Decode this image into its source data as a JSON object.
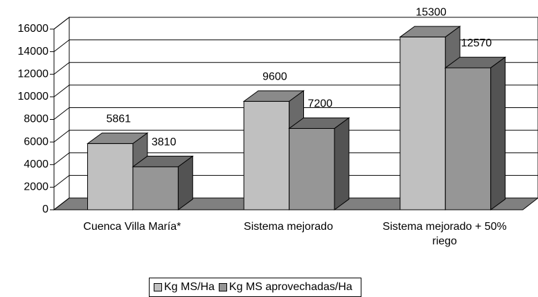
{
  "chart_data": {
    "type": "bar3d",
    "categories": [
      "Cuenca Villa María*",
      "Sistema mejorado",
      "Sistema mejorado + 50% riego"
    ],
    "series": [
      {
        "name": "Kg MS/Ha",
        "color": "#c0c0c0",
        "values": [
          5861,
          9600,
          15300
        ]
      },
      {
        "name": "Kg MS aprovechadas/Ha",
        "color": "#969696",
        "values": [
          3810,
          7200,
          12570
        ]
      }
    ],
    "ylim": [
      0,
      16000
    ],
    "yticks": [
      0,
      2000,
      4000,
      6000,
      8000,
      10000,
      12000,
      14000,
      16000
    ],
    "grid": true,
    "legend": "bottom"
  }
}
